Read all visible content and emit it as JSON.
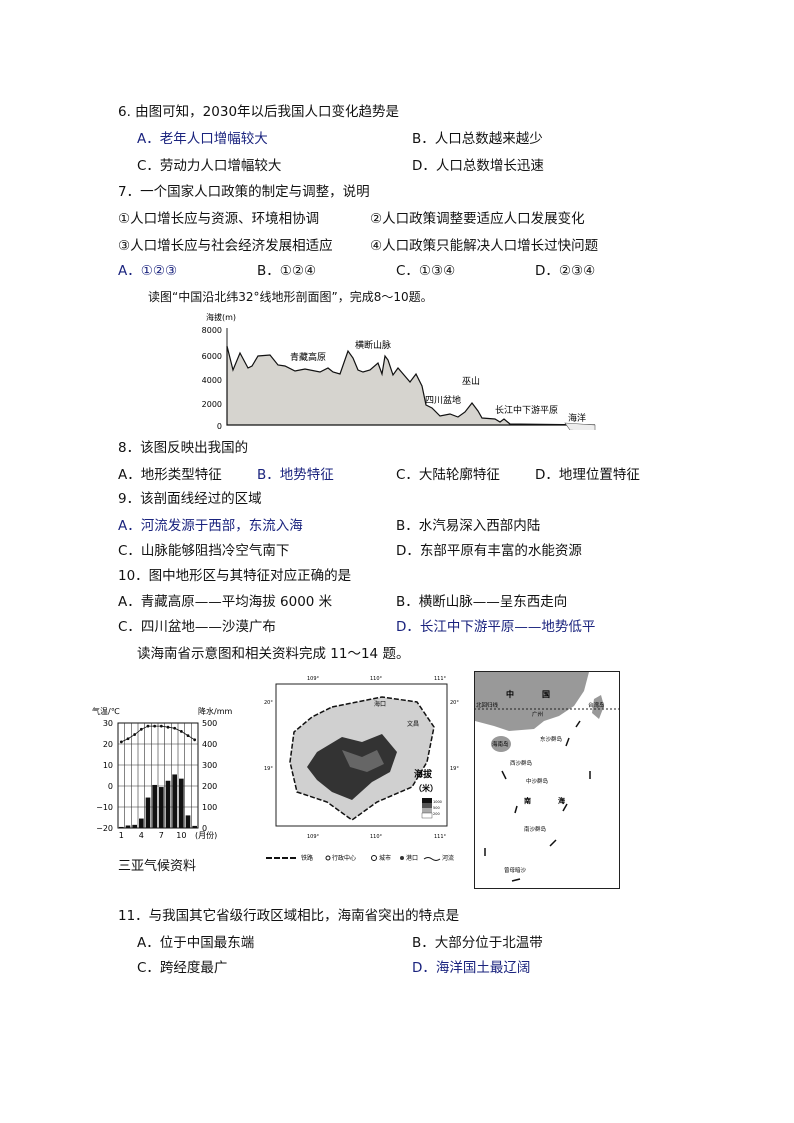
{
  "q6": {
    "stem": "6.  由图可知，2030年以后我国人口变化趋势是",
    "options": [
      "A．老年人口增幅较大",
      "B．人口总数越来越少",
      "C．劳动力人口增幅较大",
      "D．人口总数增长迅速"
    ]
  },
  "q7": {
    "stem": "7．一个国家人口政策的制定与调整，说明",
    "statements": [
      "①人口增长应与资源、环境相协调",
      "②人口政策调整要适应人口发展变化",
      "③人口增长应与社会经济发展相适应",
      "④人口政策只能解决人口增长过快问题"
    ],
    "options": [
      "A．①②③",
      "B．①②④",
      "C．①③④",
      "D．②③④"
    ]
  },
  "intro1": "读图“中国沿北纬32°线地形剖面图”，完成8～10题。",
  "profile": {
    "ylabel": "海拔(m)",
    "ticks": [
      "8000",
      "6000",
      "4000",
      "2000",
      "0"
    ],
    "labels": [
      "青藏高原",
      "横断山脉",
      "巫山",
      "四川盆地",
      "长江中下游平原",
      "海洋"
    ]
  },
  "q8": {
    "stem": "8．该图反映出我国的",
    "options": [
      "A．地形类型特征",
      "B．地势特征",
      "C．大陆轮廓特征",
      "D．地理位置特征"
    ]
  },
  "q9": {
    "stem": "9．该剖面线经过的区域",
    "options": [
      "A．河流发源于西部，东流入海",
      "B．水汽易深入西部内陆",
      "C．山脉能够阻挡冷空气南下",
      "D．东部平原有丰富的水能资源"
    ]
  },
  "q10": {
    "stem": "10．图中地形区与其特征对应正确的是",
    "options": [
      "A．青藏高原——平均海拔 6000 米",
      "B．横断山脉——呈东西走向",
      "C．四川盆地——沙漠广布",
      "D．长江中下游平原——地势低平"
    ]
  },
  "intro2": "读海南省示意图和相关资料完成 11～14 题。",
  "chart_data": {
    "type": "bar+line",
    "title": "三亚气候资料",
    "ylabel_left": "气温/℃",
    "ylabel_right": "降水/mm",
    "xlabel": "(月份)",
    "x": [
      1,
      2,
      3,
      4,
      5,
      6,
      7,
      8,
      9,
      10,
      11,
      12
    ],
    "x_ticks": [
      "1",
      "4",
      "7",
      "10"
    ],
    "ylim_left": [
      -20,
      30
    ],
    "yticks_left": [
      "30",
      "20",
      "10",
      "0",
      "−10",
      "−20"
    ],
    "ylim_right": [
      0,
      500
    ],
    "yticks_right": [
      "500",
      "400",
      "300",
      "200",
      "100",
      "0"
    ],
    "series": [
      {
        "kind": "line",
        "axis": "left",
        "values": [
          21,
          22.5,
          24.5,
          27,
          28.5,
          28.5,
          28.5,
          28,
          27.5,
          26,
          24,
          22
        ]
      },
      {
        "kind": "bar",
        "axis": "right",
        "values": [
          5,
          12,
          15,
          45,
          145,
          205,
          195,
          225,
          255,
          235,
          60,
          10
        ]
      }
    ]
  },
  "hainan_map": {
    "lon_ticks": [
      "109°",
      "110°",
      "111°"
    ],
    "lat_ticks": [
      "20°",
      "19°"
    ],
    "cities": [
      "海口",
      "文昌"
    ],
    "elev_title": "海拔",
    "elev_unit": "（米）",
    "elev_classes": [
      "1000",
      "500",
      "200"
    ],
    "legend": [
      "铁路",
      "行政中心",
      "城市",
      "港口",
      "河流"
    ]
  },
  "sea_map": {
    "labels": [
      "中",
      "国",
      "北回归线",
      "广州",
      "台湾岛",
      "海南岛",
      "东沙群岛",
      "西沙群岛",
      "中沙群岛",
      "南",
      "海",
      "南沙群岛",
      "曾母暗沙"
    ]
  },
  "q11": {
    "stem": "11．与我国其它省级行政区域相比，海南省突出的特点是",
    "options": [
      "A．位于中国最东端",
      "B．大部分位于北温带",
      "C．跨经度最广",
      "D．海洋国土最辽阔"
    ]
  }
}
